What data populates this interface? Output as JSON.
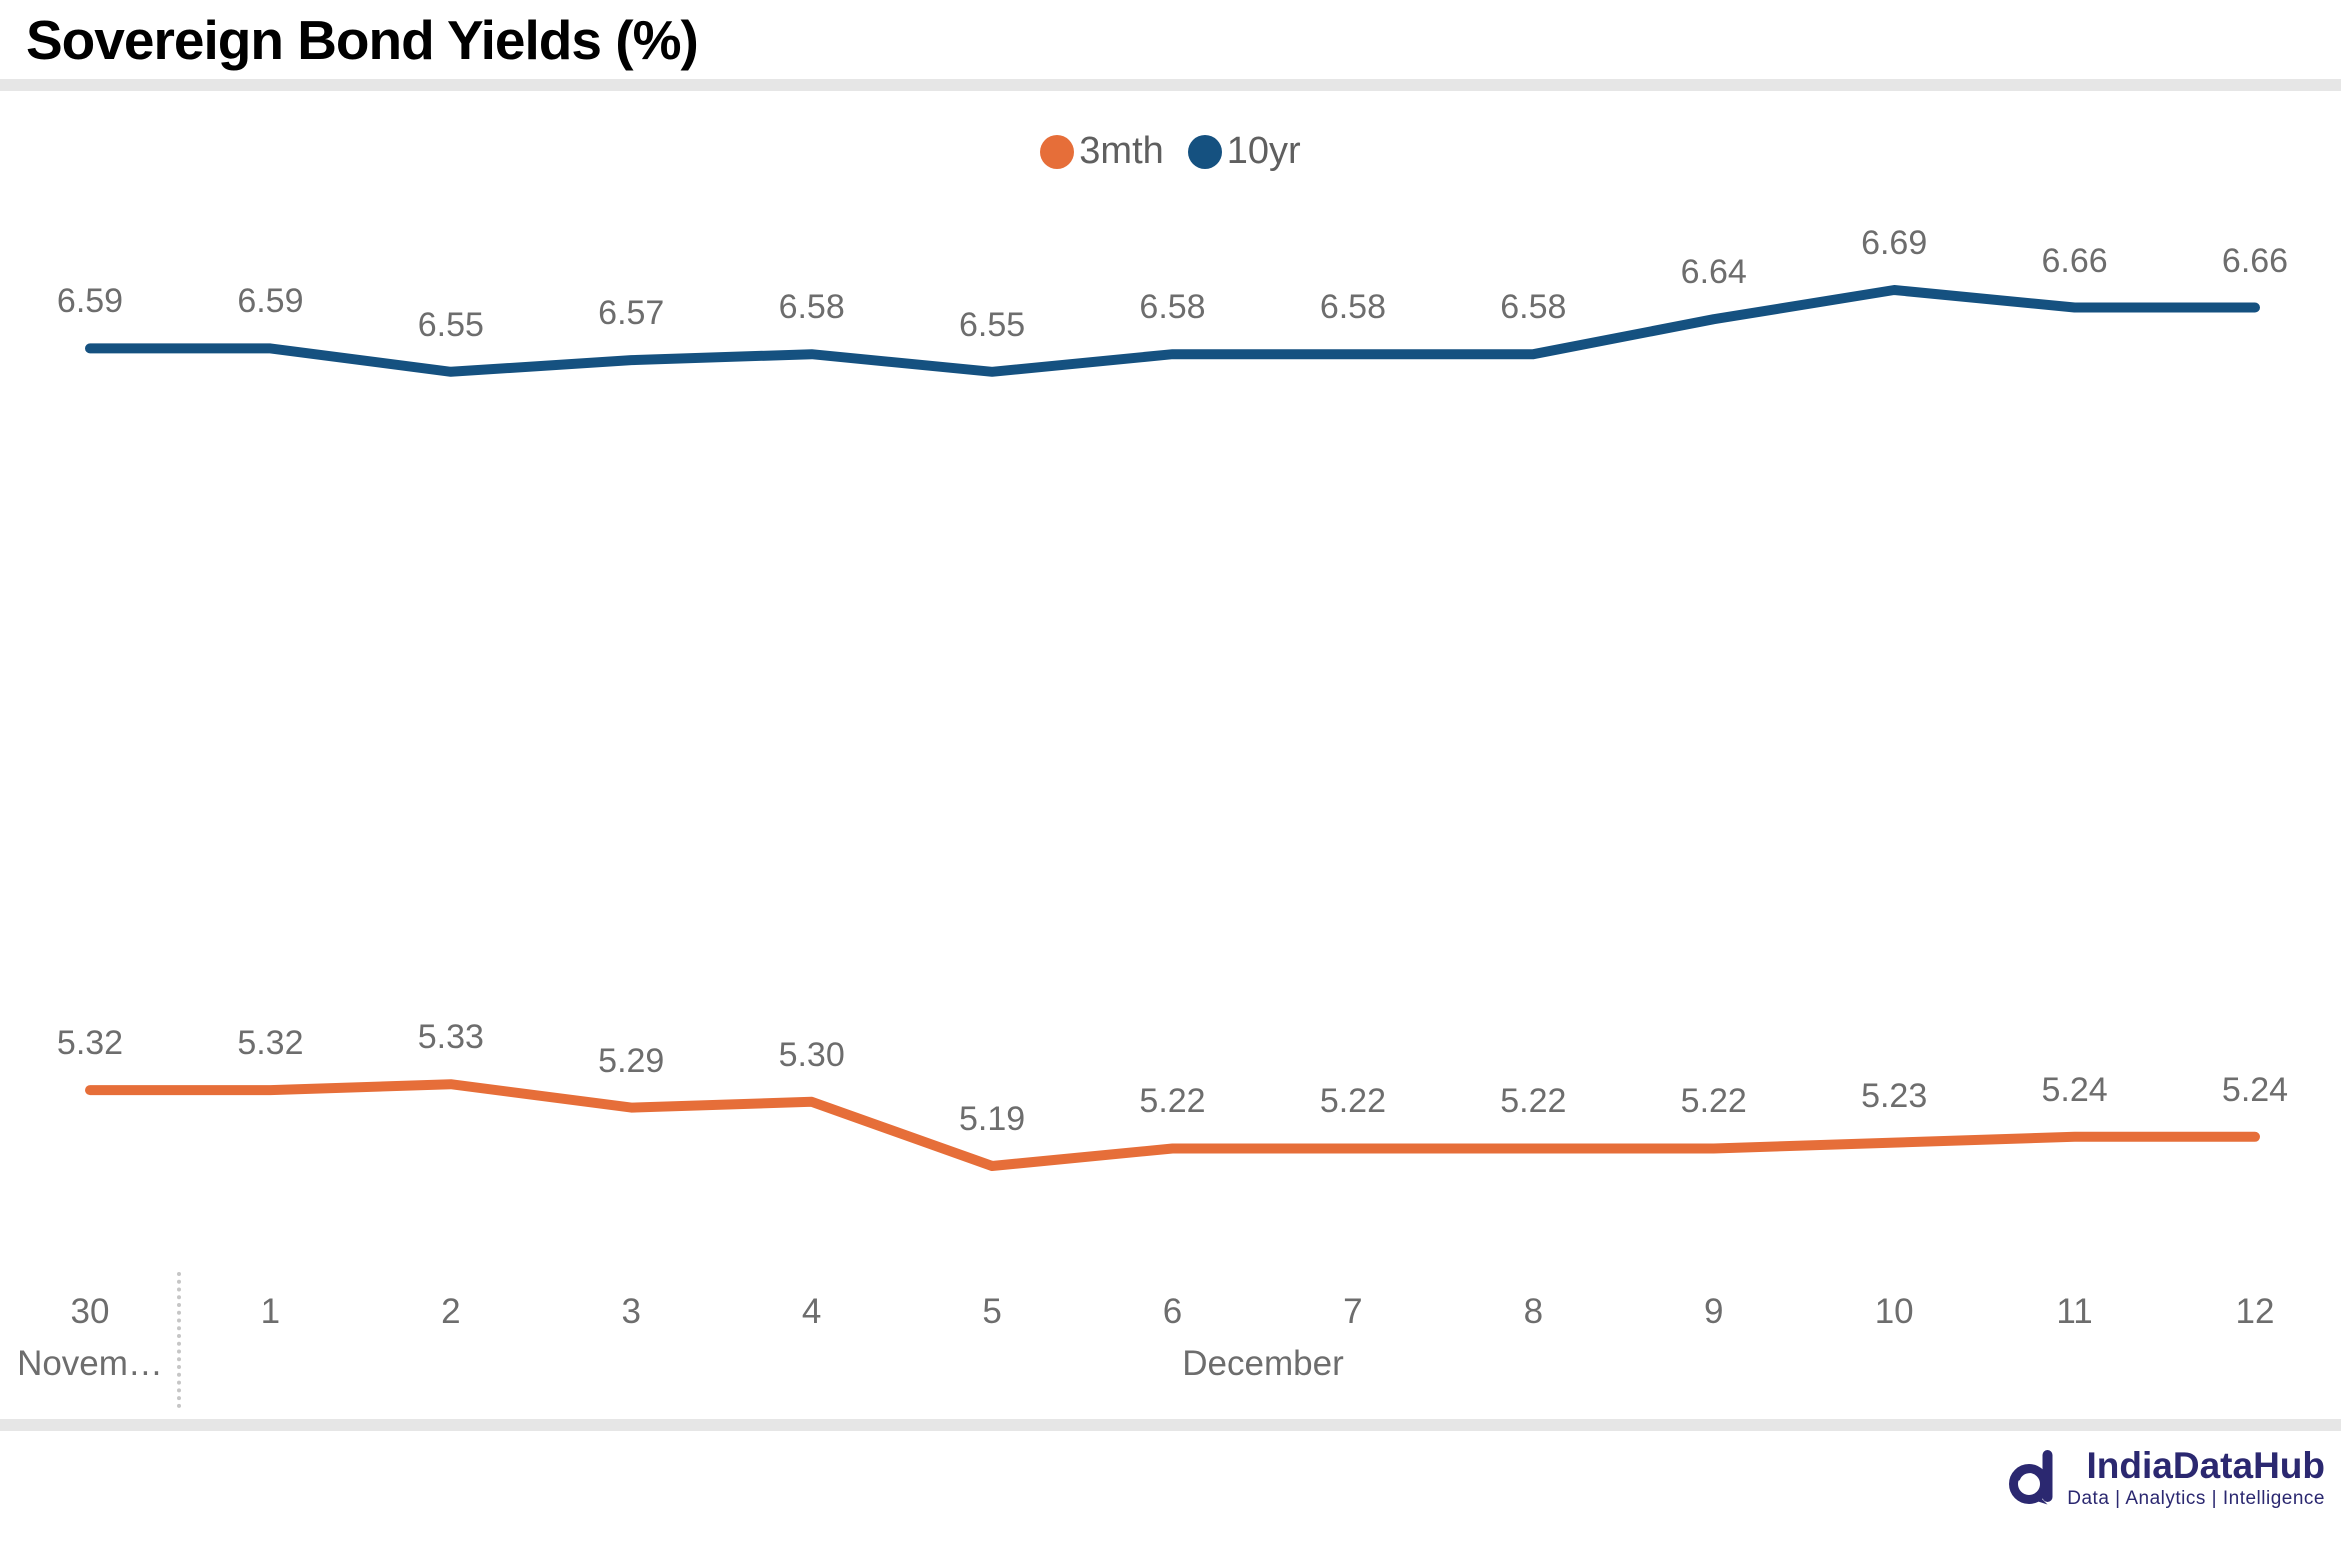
{
  "page": {
    "title": "Sovereign Bond Yields (%)"
  },
  "chart_data": {
    "type": "line",
    "title": "Sovereign Bond Yields (%)",
    "x_tick_labels": [
      "30",
      "1",
      "2",
      "3",
      "4",
      "5",
      "6",
      "7",
      "8",
      "9",
      "10",
      "11",
      "12"
    ],
    "x_month_left": "Novem…",
    "x_month_right": "December",
    "series": [
      {
        "name": "3mth",
        "color": "#E66E39",
        "values": [
          5.32,
          5.32,
          5.33,
          5.29,
          5.3,
          5.19,
          5.22,
          5.22,
          5.22,
          5.22,
          5.23,
          5.24,
          5.24
        ]
      },
      {
        "name": "10yr",
        "color": "#155180",
        "values": [
          6.59,
          6.59,
          6.55,
          6.57,
          6.58,
          6.55,
          6.58,
          6.58,
          6.58,
          6.64,
          6.69,
          6.66,
          6.66
        ]
      }
    ],
    "data_labels_shown": true,
    "value_format_decimals": 2,
    "y_range_implied": [
      5.0,
      6.9
    ],
    "legend_position": "top-center",
    "grid": false,
    "label_color": "#6d6d6d"
  },
  "branding": {
    "logo_text": "IndiaDataHub",
    "tagline": "Data | Analytics | Intelligence",
    "logo_color": "#2B2870"
  }
}
